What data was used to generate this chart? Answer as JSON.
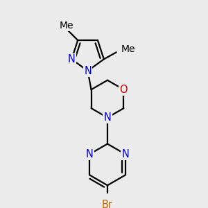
{
  "bg_color": "#ebebeb",
  "bond_color": "#000000",
  "N_color": "#0000cc",
  "O_color": "#cc0000",
  "Br_color": "#bb6600",
  "line_width": 1.6,
  "font_size": 10.5,
  "fig_width": 3.0,
  "fig_height": 3.0,
  "xlim": [
    0.3,
    2.7
  ],
  "ylim": [
    0.1,
    2.9
  ]
}
